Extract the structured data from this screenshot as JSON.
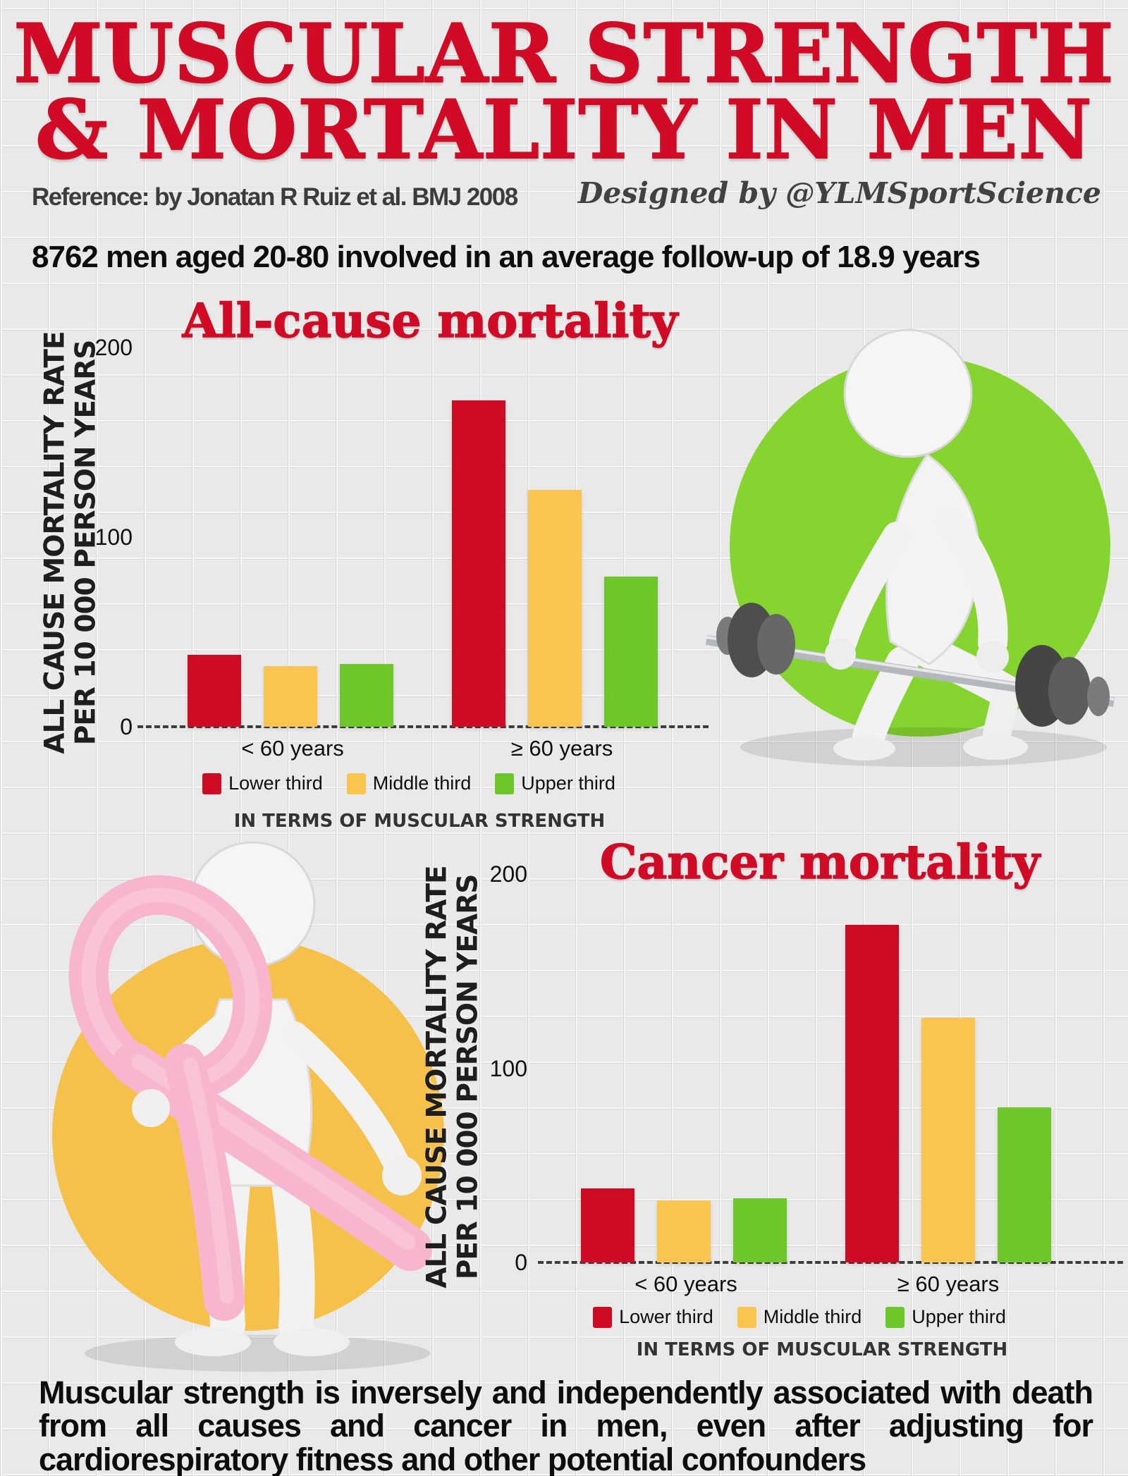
{
  "header": {
    "title_line1": "MUSCULAR STRENGTH",
    "title_line2": "& MORTALITY IN MEN",
    "reference": "Reference: by Jonatan R Ruiz et al. BMJ 2008",
    "designed_by": "Designed by @YLMSportScience",
    "subtitle": "8762 men aged 20-80 involved in an average follow-up of 18.9 years"
  },
  "axis": {
    "ylabel_line1": "ALL CAUSE MORTALITY RATE",
    "ylabel_line2": "PER 10 000 PERSON YEARS",
    "caption": "IN TERMS OF MUSCULAR STRENGTH"
  },
  "footer": {
    "text": "Muscular strength is inversely and independently associated with death from all causes and cancer in men, even after adjusting for cardiorespiratory fitness and other potential confounders"
  },
  "colors": {
    "accent_red": "#d10a26",
    "bar_red": "#cf0a23",
    "bar_yellow": "#f9c54e",
    "bar_green": "#6dc62a",
    "circle_green": "#86d42f",
    "circle_yellow": "#f6c14b",
    "ribbon_pink": "#f7b6ce",
    "text_dark": "#3c3c3c",
    "text_black": "#0d0d0d"
  },
  "illustration_names": {
    "right_of_chart1": "weightlifter-figure-with-barbell-on-green-circle",
    "left_of_chart2": "white-figure-holding-pink-awareness-ribbon-on-yellow-circle"
  },
  "chart_data": [
    {
      "type": "bar",
      "title": "All-cause mortality",
      "categories": [
        "< 60 years",
        "≥ 60 years"
      ],
      "series": [
        {
          "name": "Lower third",
          "color": "#cf0a23",
          "values": [
            38,
            172
          ]
        },
        {
          "name": "Middle third",
          "color": "#f9c54e",
          "values": [
            32,
            125
          ]
        },
        {
          "name": "Upper third",
          "color": "#6dc62a",
          "values": [
            33,
            79
          ]
        }
      ],
      "ylabel": "ALL CAUSE MORTALITY RATE PER 10 000 PERSON YEARS",
      "xlabel": "IN TERMS OF MUSCULAR STRENGTH",
      "yticks": [
        0,
        100,
        200
      ],
      "ylim": [
        0,
        200
      ],
      "grid": false,
      "legend_position": "bottom"
    },
    {
      "type": "bar",
      "title": "Cancer mortality",
      "categories": [
        "< 60 years",
        "≥ 60 years"
      ],
      "series": [
        {
          "name": "Lower third",
          "color": "#cf0a23",
          "values": [
            38,
            174
          ]
        },
        {
          "name": "Middle third",
          "color": "#f9c54e",
          "values": [
            32,
            126
          ]
        },
        {
          "name": "Upper third",
          "color": "#6dc62a",
          "values": [
            33,
            80
          ]
        }
      ],
      "ylabel": "ALL CAUSE MORTALITY RATE PER 10 000 PERSON YEARS",
      "xlabel": "IN TERMS OF MUSCULAR STRENGTH",
      "yticks": [
        0,
        100,
        200
      ],
      "ylim": [
        0,
        200
      ],
      "grid": false,
      "legend_position": "bottom"
    }
  ]
}
